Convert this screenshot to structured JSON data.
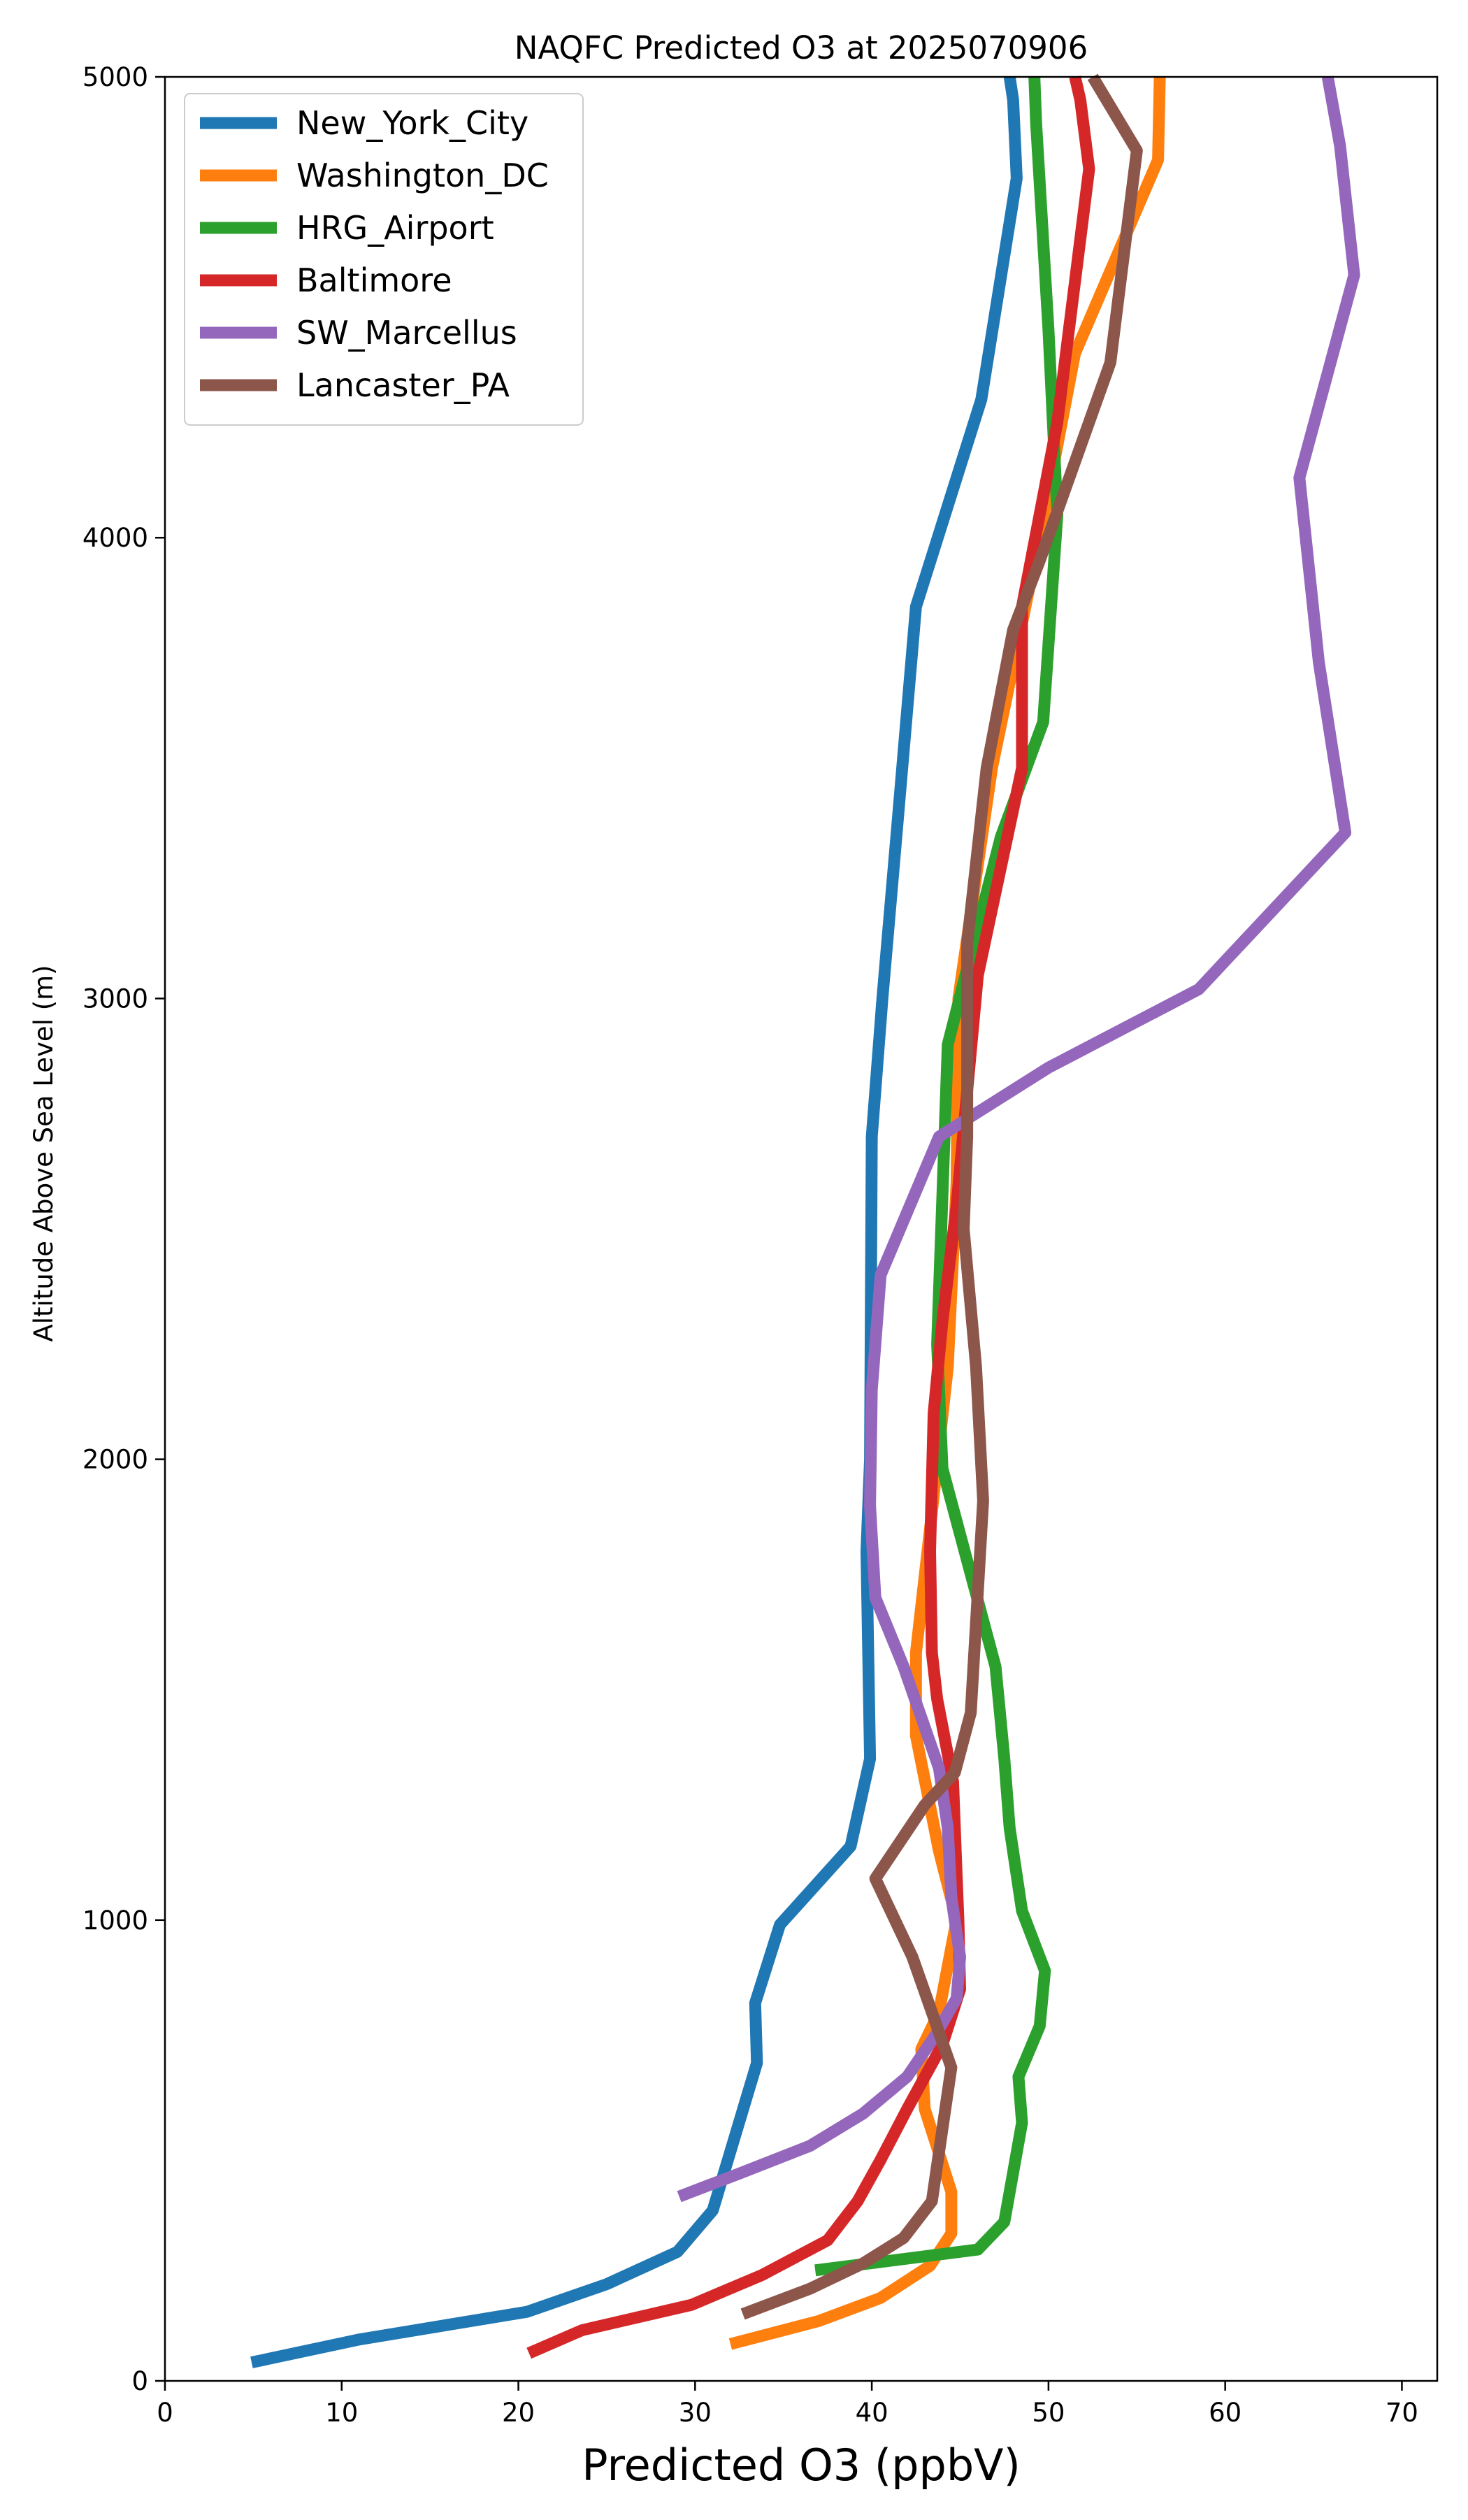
{
  "chart_data": {
    "type": "line",
    "title": "NAQFC Predicted O3 at 2025070906",
    "xlabel": "Predicted O3 (ppbV)",
    "ylabel": "Altitude Above Sea Level (m)",
    "xlim": [
      0,
      72
    ],
    "ylim": [
      0,
      5000
    ],
    "xticks": [
      0,
      10,
      20,
      30,
      40,
      50,
      60,
      70
    ],
    "yticks": [
      0,
      1000,
      2000,
      3000,
      4000,
      5000
    ],
    "grid": false,
    "legend_position": "top-left",
    "series": [
      {
        "name": "New_York_City",
        "color": "#1f77b4",
        "points": [
          [
            4.9,
            40
          ],
          [
            11,
            90
          ],
          [
            20.5,
            150
          ],
          [
            25,
            210
          ],
          [
            29,
            280
          ],
          [
            31,
            370
          ],
          [
            33.5,
            690
          ],
          [
            33.4,
            820
          ],
          [
            34.8,
            990
          ],
          [
            38.8,
            1160
          ],
          [
            39.9,
            1350
          ],
          [
            39.7,
            1800
          ],
          [
            39.9,
            2000
          ],
          [
            40,
            2700
          ],
          [
            40.6,
            3000
          ],
          [
            41.5,
            3400
          ],
          [
            42.5,
            3850
          ],
          [
            46.2,
            4300
          ],
          [
            48.2,
            4780
          ],
          [
            48,
            4950
          ],
          [
            47.8,
            5000
          ]
        ]
      },
      {
        "name": "Washington_DC",
        "color": "#ff7f0e",
        "points": [
          [
            32,
            80
          ],
          [
            37,
            130
          ],
          [
            40.5,
            180
          ],
          [
            43.3,
            250
          ],
          [
            44.5,
            320
          ],
          [
            44.5,
            410
          ],
          [
            43,
            590
          ],
          [
            42.8,
            720
          ],
          [
            43.8,
            800
          ],
          [
            44.8,
            1000
          ],
          [
            43.8,
            1150
          ],
          [
            42.5,
            1400
          ],
          [
            42.5,
            1580
          ],
          [
            43.3,
            1850
          ],
          [
            44.3,
            2200
          ],
          [
            44.8,
            2600
          ],
          [
            44.9,
            3000
          ],
          [
            46.8,
            3500
          ],
          [
            49.5,
            4000
          ],
          [
            51.5,
            4400
          ],
          [
            56.2,
            4820
          ],
          [
            56.3,
            5000
          ]
        ]
      },
      {
        "name": "HRG_Airport",
        "color": "#2ca02c",
        "points": [
          [
            36.8,
            240
          ],
          [
            46,
            285
          ],
          [
            47.5,
            345
          ],
          [
            48.5,
            560
          ],
          [
            48.3,
            660
          ],
          [
            49.5,
            770
          ],
          [
            49.8,
            890
          ],
          [
            48.5,
            1020
          ],
          [
            47.8,
            1200
          ],
          [
            47.5,
            1350
          ],
          [
            47,
            1550
          ],
          [
            44,
            1980
          ],
          [
            43.7,
            2250
          ],
          [
            44.3,
            2900
          ],
          [
            47.3,
            3350
          ],
          [
            49.7,
            3600
          ],
          [
            50.5,
            4050
          ],
          [
            50,
            4450
          ],
          [
            49.3,
            4900
          ],
          [
            49.2,
            5000
          ]
        ]
      },
      {
        "name": "Baltimore",
        "color": "#d62728",
        "points": [
          [
            20.6,
            60
          ],
          [
            23.6,
            110
          ],
          [
            29.8,
            165
          ],
          [
            33.8,
            230
          ],
          [
            37.5,
            305
          ],
          [
            39.2,
            390
          ],
          [
            40.5,
            480
          ],
          [
            42,
            590
          ],
          [
            44,
            730
          ],
          [
            45,
            850
          ],
          [
            44.9,
            1000
          ],
          [
            44.8,
            1100
          ],
          [
            44.6,
            1300
          ],
          [
            43.7,
            1480
          ],
          [
            43.4,
            1580
          ],
          [
            43.3,
            1800
          ],
          [
            43.5,
            2100
          ],
          [
            44,
            2300
          ],
          [
            44.8,
            2550
          ],
          [
            46,
            3050
          ],
          [
            48.5,
            3500
          ],
          [
            48.5,
            3850
          ],
          [
            50.5,
            4250
          ],
          [
            52.3,
            4800
          ],
          [
            51.8,
            4950
          ],
          [
            51.5,
            5000
          ]
        ]
      },
      {
        "name": "SW_Marcellus",
        "color": "#9467bd",
        "points": [
          [
            29.1,
            400
          ],
          [
            32.5,
            450
          ],
          [
            36.5,
            510
          ],
          [
            39.5,
            580
          ],
          [
            42,
            660
          ],
          [
            43.6,
            750
          ],
          [
            44.8,
            830
          ],
          [
            45,
            920
          ],
          [
            44.5,
            1050
          ],
          [
            44.3,
            1200
          ],
          [
            43.8,
            1330
          ],
          [
            41.8,
            1550
          ],
          [
            40.2,
            1700
          ],
          [
            39.9,
            1900
          ],
          [
            40,
            2150
          ],
          [
            40.5,
            2400
          ],
          [
            43.8,
            2700
          ],
          [
            50,
            2850
          ],
          [
            58.5,
            3020
          ],
          [
            66.8,
            3360
          ],
          [
            65.3,
            3730
          ],
          [
            64.2,
            4130
          ],
          [
            67.3,
            4570
          ],
          [
            66.5,
            4850
          ],
          [
            65.8,
            5000
          ]
        ]
      },
      {
        "name": "Lancaster_PA",
        "color": "#8c564b",
        "points": [
          [
            32.7,
            145
          ],
          [
            36.5,
            200
          ],
          [
            39.5,
            255
          ],
          [
            41.8,
            310
          ],
          [
            43.4,
            390
          ],
          [
            44.5,
            680
          ],
          [
            42.3,
            920
          ],
          [
            40.2,
            1090
          ],
          [
            43,
            1250
          ],
          [
            44.7,
            1320
          ],
          [
            45.6,
            1450
          ],
          [
            46.3,
            1910
          ],
          [
            45.9,
            2200
          ],
          [
            45.2,
            2500
          ],
          [
            45.4,
            2700
          ],
          [
            45.4,
            3120
          ],
          [
            46.5,
            3500
          ],
          [
            48,
            3800
          ],
          [
            49.5,
            3950
          ],
          [
            53.5,
            4380
          ],
          [
            55,
            4840
          ],
          [
            52.5,
            5000
          ]
        ]
      }
    ]
  }
}
